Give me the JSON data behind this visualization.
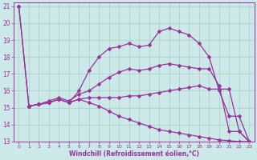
{
  "xlabel": "Windchill (Refroidissement éolien,°C)",
  "background_color": "#cce8e8",
  "grid_color": "#99ccbb",
  "line_color": "#993399",
  "xlim": [
    -0.5,
    23.5
  ],
  "ylim": [
    13,
    21.2
  ],
  "xticks": [
    0,
    1,
    2,
    3,
    4,
    5,
    6,
    7,
    8,
    9,
    10,
    11,
    12,
    13,
    14,
    15,
    16,
    17,
    18,
    19,
    20,
    21,
    22,
    23
  ],
  "yticks": [
    13,
    14,
    15,
    16,
    17,
    18,
    19,
    20,
    21
  ],
  "lineA_x": [
    0,
    1,
    2,
    3,
    4,
    5,
    6,
    7,
    8,
    9,
    10,
    11,
    12,
    13,
    14,
    15,
    16,
    17,
    18,
    19,
    20,
    21,
    22,
    23
  ],
  "lineA_y": [
    21.0,
    15.1,
    15.2,
    15.3,
    15.5,
    15.3,
    16.0,
    17.2,
    18.0,
    18.5,
    18.6,
    18.8,
    18.6,
    18.7,
    19.5,
    19.7,
    19.5,
    19.3,
    18.8,
    18.0,
    16.0,
    14.5,
    14.5,
    13.0
  ],
  "lineB_x": [
    0,
    1,
    2,
    3,
    4,
    5,
    6,
    7,
    8,
    9,
    10,
    11,
    12,
    13,
    14,
    15,
    16,
    17,
    18,
    19,
    20,
    21,
    22,
    23
  ],
  "lineB_y": [
    21.0,
    15.1,
    15.2,
    15.4,
    15.6,
    15.4,
    15.8,
    16.0,
    16.4,
    16.8,
    17.1,
    17.3,
    17.2,
    17.3,
    17.5,
    17.6,
    17.5,
    17.4,
    17.3,
    17.3,
    16.3,
    13.6,
    13.6,
    13.0
  ],
  "lineC_x": [
    1,
    2,
    3,
    4,
    5,
    6,
    7,
    8,
    9,
    10,
    11,
    12,
    13,
    14,
    15,
    16,
    17,
    18,
    19,
    20,
    21,
    22,
    23
  ],
  "lineC_y": [
    15.1,
    15.2,
    15.3,
    15.5,
    15.3,
    15.5,
    15.6,
    15.6,
    15.6,
    15.6,
    15.7,
    15.7,
    15.8,
    15.9,
    16.0,
    16.1,
    16.2,
    16.3,
    16.1,
    16.1,
    16.1,
    13.6,
    13.0
  ],
  "lineD_x": [
    1,
    2,
    3,
    4,
    5,
    6,
    7,
    8,
    9,
    10,
    11,
    12,
    13,
    14,
    15,
    16,
    17,
    18,
    19,
    20,
    21,
    22,
    23
  ],
  "lineD_y": [
    15.1,
    15.2,
    15.3,
    15.5,
    15.3,
    15.5,
    15.3,
    15.1,
    14.8,
    14.5,
    14.3,
    14.1,
    13.9,
    13.7,
    13.6,
    13.5,
    13.4,
    13.3,
    13.2,
    13.1,
    13.05,
    13.0,
    13.0
  ]
}
